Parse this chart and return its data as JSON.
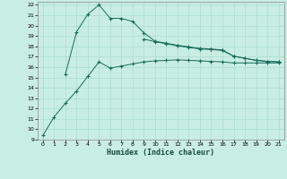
{
  "xlabel": "Humidex (Indice chaleur)",
  "bg_color": "#c8ede4",
  "line_color": "#1a6b5a",
  "grid_color": "#aaddd0",
  "xlim": [
    -0.5,
    21.5
  ],
  "ylim": [
    9,
    22.3
  ],
  "xticks": [
    0,
    1,
    2,
    3,
    4,
    5,
    6,
    7,
    8,
    9,
    10,
    11,
    12,
    13,
    14,
    15,
    16,
    17,
    18,
    19,
    20,
    21
  ],
  "yticks": [
    9,
    10,
    11,
    12,
    13,
    14,
    15,
    16,
    17,
    18,
    19,
    20,
    21,
    22
  ],
  "line1_x": [
    0,
    1,
    2,
    3,
    4,
    5,
    6,
    7,
    8,
    9,
    10,
    11,
    12,
    13,
    14,
    15,
    16,
    17,
    18,
    19,
    20,
    21
  ],
  "line1_y": [
    9.4,
    11.2,
    12.5,
    13.7,
    15.1,
    16.5,
    15.9,
    16.1,
    16.3,
    16.5,
    16.6,
    16.65,
    16.7,
    16.65,
    16.6,
    16.55,
    16.5,
    16.4,
    16.4,
    16.4,
    16.4,
    16.4
  ],
  "line2_x": [
    2,
    3,
    4,
    5,
    6,
    7,
    8,
    9,
    10,
    11,
    12,
    13,
    14,
    15,
    16,
    17,
    18,
    19,
    20,
    21
  ],
  "line2_y": [
    15.3,
    19.4,
    21.1,
    22.0,
    20.7,
    20.7,
    20.4,
    19.3,
    18.5,
    18.3,
    18.1,
    17.95,
    17.8,
    17.75,
    17.65,
    17.05,
    16.85,
    16.65,
    16.55,
    16.5
  ],
  "line3_x": [
    9,
    10,
    11,
    12,
    13,
    14,
    15,
    16,
    17,
    18,
    19,
    20,
    21
  ],
  "line3_y": [
    18.7,
    18.45,
    18.25,
    18.05,
    17.9,
    17.75,
    17.7,
    17.6,
    17.05,
    16.85,
    16.65,
    16.55,
    16.5
  ]
}
